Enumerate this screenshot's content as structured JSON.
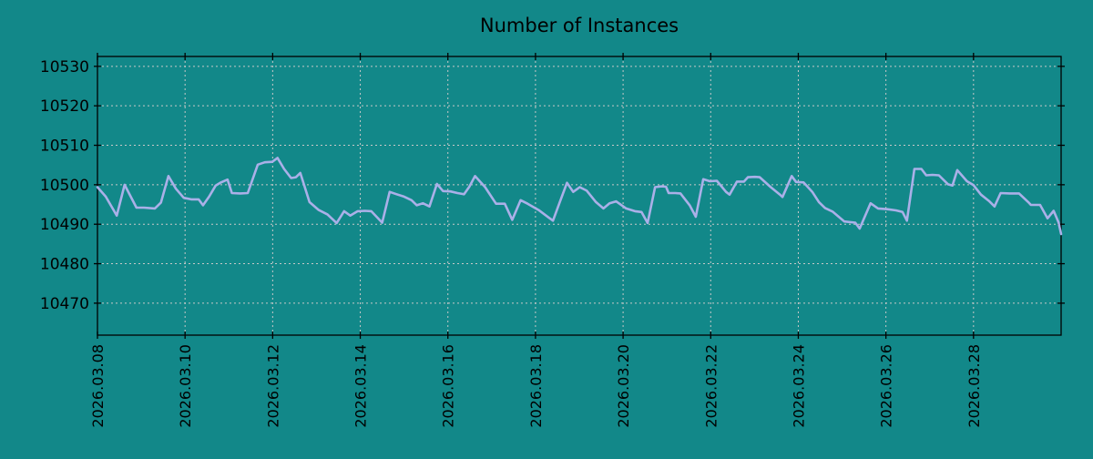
{
  "colors": {
    "background": "#128889",
    "line": "#aab0e8",
    "grid": "#c8c8c8",
    "axis": "#000000",
    "text": "#000000"
  },
  "chart_data": {
    "type": "line",
    "title": "Number of Instances",
    "xlabel": "",
    "ylabel": "",
    "grid": true,
    "legend": null,
    "ylim": [
      10461.9,
      10532.5
    ],
    "xlim_days": [
      0,
      22.0
    ],
    "yticks": [
      10470,
      10480,
      10490,
      10500,
      10510,
      10520,
      10530
    ],
    "xticks": [
      {
        "day": 0,
        "label": "2026.03.08"
      },
      {
        "day": 2,
        "label": "2026.03.10"
      },
      {
        "day": 4,
        "label": "2026.03.12"
      },
      {
        "day": 6,
        "label": "2026.03.14"
      },
      {
        "day": 8,
        "label": "2026.03.16"
      },
      {
        "day": 10,
        "label": "2026.03.18"
      },
      {
        "day": 12,
        "label": "2026.03.20"
      },
      {
        "day": 14,
        "label": "2026.03.22"
      },
      {
        "day": 16,
        "label": "2026.03.24"
      },
      {
        "day": 18,
        "label": "2026.03.26"
      },
      {
        "day": 20,
        "label": "2026.03.28"
      }
    ],
    "series": [
      {
        "name": "instances",
        "color": "#aab0e8",
        "x_days": [
          0.0,
          0.19,
          0.44,
          0.62,
          0.89,
          1.06,
          1.31,
          1.45,
          1.62,
          1.79,
          1.97,
          2.14,
          2.31,
          2.41,
          2.55,
          2.7,
          2.82,
          2.97,
          3.07,
          3.26,
          3.43,
          3.66,
          3.82,
          3.99,
          4.11,
          4.26,
          4.42,
          4.53,
          4.63,
          4.84,
          5.05,
          5.25,
          5.46,
          5.63,
          5.77,
          5.94,
          6.11,
          6.25,
          6.5,
          6.67,
          6.83,
          7.0,
          7.17,
          7.29,
          7.43,
          7.58,
          7.75,
          7.89,
          8.06,
          8.22,
          8.37,
          8.49,
          8.62,
          8.85,
          9.1,
          9.3,
          9.47,
          9.66,
          9.82,
          10.07,
          10.3,
          10.4,
          10.55,
          10.72,
          10.86,
          11.01,
          11.17,
          11.38,
          11.55,
          11.69,
          11.84,
          12.07,
          12.27,
          12.42,
          12.56,
          12.73,
          12.88,
          12.98,
          13.04,
          13.19,
          13.31,
          13.52,
          13.66,
          13.83,
          13.98,
          14.14,
          14.35,
          14.43,
          14.6,
          14.76,
          14.85,
          15.01,
          15.12,
          15.37,
          15.58,
          15.64,
          15.85,
          15.95,
          16.12,
          16.32,
          16.47,
          16.61,
          16.78,
          17.05,
          17.3,
          17.4,
          17.65,
          17.82,
          18.03,
          18.23,
          18.38,
          18.48,
          18.65,
          18.81,
          18.92,
          19.06,
          19.21,
          19.42,
          19.52,
          19.63,
          19.85,
          20.0,
          20.17,
          20.35,
          20.48,
          20.62,
          20.83,
          21.04,
          21.25,
          21.31,
          21.52,
          21.69,
          21.83,
          21.94,
          22.0
        ],
        "values": [
          10499.4,
          10497.0,
          10492.2,
          10500.0,
          10494.2,
          10494.2,
          10494.0,
          10495.5,
          10502.2,
          10499.0,
          10496.7,
          10496.3,
          10496.3,
          10494.8,
          10497.0,
          10499.8,
          10500.6,
          10501.3,
          10497.9,
          10497.8,
          10497.9,
          10505.1,
          10505.7,
          10505.8,
          10506.8,
          10504.0,
          10501.7,
          10501.9,
          10503.0,
          10495.6,
          10493.6,
          10492.5,
          10490.3,
          10493.3,
          10492.2,
          10493.3,
          10493.4,
          10493.3,
          10490.4,
          10498.2,
          10497.6,
          10497.0,
          10496.1,
          10494.8,
          10495.3,
          10494.5,
          10500.2,
          10498.4,
          10498.3,
          10497.9,
          10497.6,
          10499.5,
          10502.2,
          10499.4,
          10495.2,
          10495.2,
          10491.1,
          10496.1,
          10495.2,
          10493.6,
          10491.7,
          10490.9,
          10495.5,
          10500.5,
          10498.2,
          10499.4,
          10498.5,
          10495.6,
          10494.0,
          10495.3,
          10495.8,
          10494.0,
          10493.3,
          10493.1,
          10490.3,
          10499.4,
          10499.6,
          10499.5,
          10497.9,
          10497.9,
          10497.8,
          10494.8,
          10491.9,
          10501.4,
          10500.9,
          10501.0,
          10498.2,
          10497.5,
          10500.8,
          10500.8,
          10501.9,
          10502.0,
          10501.9,
          10499.4,
          10497.5,
          10496.9,
          10502.2,
          10500.7,
          10500.6,
          10498.2,
          10495.6,
          10494.1,
          10493.2,
          10490.7,
          10490.4,
          10488.9,
          10495.3,
          10494.0,
          10493.8,
          10493.5,
          10493.1,
          10490.9,
          10504.0,
          10504.0,
          10502.4,
          10502.5,
          10502.4,
          10500.1,
          10499.8,
          10503.7,
          10500.9,
          10499.9,
          10497.5,
          10495.9,
          10494.5,
          10497.9,
          10497.8,
          10497.8,
          10495.6,
          10494.9,
          10494.9,
          10491.5,
          10493.4,
          10490.5,
          10487.5
        ]
      }
    ]
  }
}
